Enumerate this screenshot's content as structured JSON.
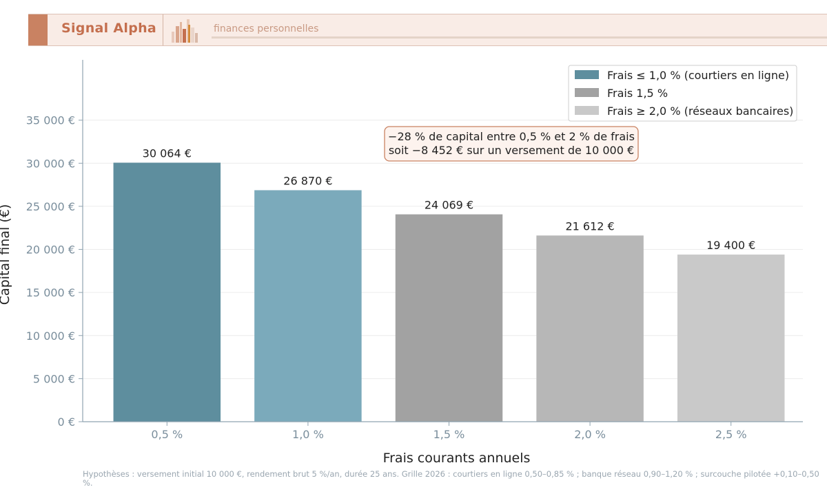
{
  "header": {
    "brand": "Signal Alpha",
    "tagline": "finances personnelles",
    "colors": {
      "accent": "#c98262",
      "brand_text": "#c46f4e",
      "background": "#f9ece6"
    }
  },
  "chart_data": {
    "type": "bar",
    "categories": [
      "0,5 %",
      "1,0 %",
      "1,5 %",
      "2,0 %",
      "2,5 %"
    ],
    "values": [
      30064,
      26870,
      24069,
      21612,
      19400
    ],
    "value_labels": [
      "30 064 €",
      "26 870 €",
      "24 069 €",
      "21 612 €",
      "19 400 €"
    ],
    "bar_colors": [
      "#5e8e9e",
      "#7baabb",
      "#a2a2a2",
      "#b7b7b7",
      "#c9c9c9"
    ],
    "xlabel": "Frais courants annuels",
    "ylabel": "Capital final (€)",
    "ylim": [
      0,
      42000
    ],
    "yticks": [
      0,
      5000,
      10000,
      15000,
      20000,
      25000,
      30000,
      35000
    ],
    "ytick_labels": [
      "0 €",
      "5 000 €",
      "10 000 €",
      "15 000 €",
      "20 000 €",
      "25 000 €",
      "30 000 €",
      "35 000 €"
    ],
    "grid": "horizontal",
    "legend": {
      "placement": "top-right",
      "entries": [
        {
          "label": "Frais ≤ 1,0 % (courtiers en ligne)",
          "color": "#5e8e9e"
        },
        {
          "label": "Frais 1,5 %",
          "color": "#a2a2a2"
        },
        {
          "label": "Frais ≥ 2,0 % (réseaux bancaires)",
          "color": "#c9c9c9"
        }
      ]
    },
    "annotation": {
      "lines": [
        "−28 % de capital entre 0,5 % et 2 % de frais",
        "soit −8 452 € sur un versement de 10 000 €"
      ]
    }
  },
  "footnote": "Hypothèses : versement initial 10 000 €, rendement brut 5 %/an, durée 25 ans. Grille 2026 : courtiers en ligne 0,50–0,85 % ; banque réseau 0,90–1,20 % ; surcouche pilotée +0,10–0,50 %."
}
